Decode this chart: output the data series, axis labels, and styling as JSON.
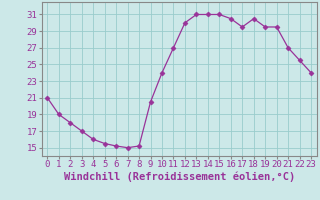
{
  "x": [
    0,
    1,
    2,
    3,
    4,
    5,
    6,
    7,
    8,
    9,
    10,
    11,
    12,
    13,
    14,
    15,
    16,
    17,
    18,
    19,
    20,
    21,
    22,
    23
  ],
  "y": [
    21,
    19,
    18,
    17,
    16,
    15.5,
    15.2,
    15,
    15.2,
    20.5,
    24,
    27,
    30,
    31,
    31,
    31,
    30.5,
    29.5,
    30.5,
    29.5,
    29.5,
    27,
    25.5,
    24
  ],
  "line_color": "#993399",
  "marker": "D",
  "marker_size": 2.5,
  "bg_color": "#cce8e8",
  "grid_color": "#99cccc",
  "xlabel": "Windchill (Refroidissement éolien,°C)",
  "xlabel_fontsize": 7.5,
  "tick_fontsize": 6.5,
  "xlim": [
    -0.5,
    23.5
  ],
  "ylim": [
    14,
    32.5
  ],
  "yticks": [
    15,
    17,
    19,
    21,
    23,
    25,
    27,
    29,
    31
  ],
  "xticks": [
    0,
    1,
    2,
    3,
    4,
    5,
    6,
    7,
    8,
    9,
    10,
    11,
    12,
    13,
    14,
    15,
    16,
    17,
    18,
    19,
    20,
    21,
    22,
    23
  ],
  "spine_color": "#888888"
}
